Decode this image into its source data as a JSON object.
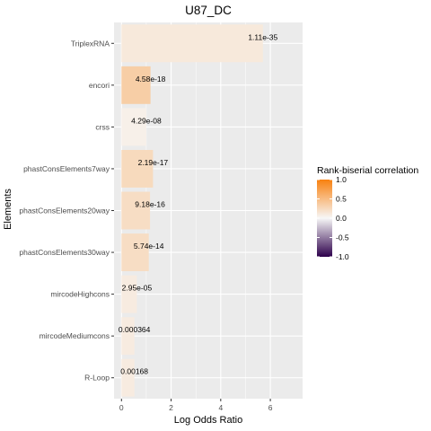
{
  "chart_data": {
    "type": "bar",
    "orientation": "horizontal",
    "title": "U87_DC",
    "xlabel": "Log Odds Ratio",
    "ylabel": "Elements",
    "xlim": [
      -0.3,
      7.3
    ],
    "xticks": [
      0,
      2,
      4,
      6
    ],
    "grid": true,
    "categories": [
      "TriplexRNA",
      "encori",
      "crss",
      "phastConsElements7way",
      "phastConsElements20way",
      "phastConsElements30way",
      "mircodeHighcons",
      "mircodeMediumcons",
      "R-Loop"
    ],
    "values": [
      5.7,
      1.17,
      1.0,
      1.27,
      1.15,
      1.1,
      0.62,
      0.52,
      0.52
    ],
    "labels": [
      "1.11e-35",
      "4.58e-18",
      "4.29e-08",
      "2.19e-17",
      "9.18e-16",
      "5.74e-14",
      "2.95e-05",
      "0.000364",
      "0.00168"
    ],
    "color_values": [
      0.12,
      0.35,
      0.06,
      0.25,
      0.22,
      0.22,
      0.1,
      0.1,
      0.1
    ],
    "legend": {
      "title": "Rank-biserial correlation",
      "placement": "right",
      "ticks": [
        "1.0",
        "0.5",
        "0.0",
        "-0.5",
        "-1.0"
      ],
      "tick_values": [
        1.0,
        0.5,
        0.0,
        -0.5,
        -1.0
      ],
      "colors": {
        "high": "#f8810f",
        "mid": "#f7f7f7",
        "low": "#2d004b"
      }
    },
    "colors": {
      "panel": "#ebebeb",
      "grid": "#ffffff"
    }
  }
}
